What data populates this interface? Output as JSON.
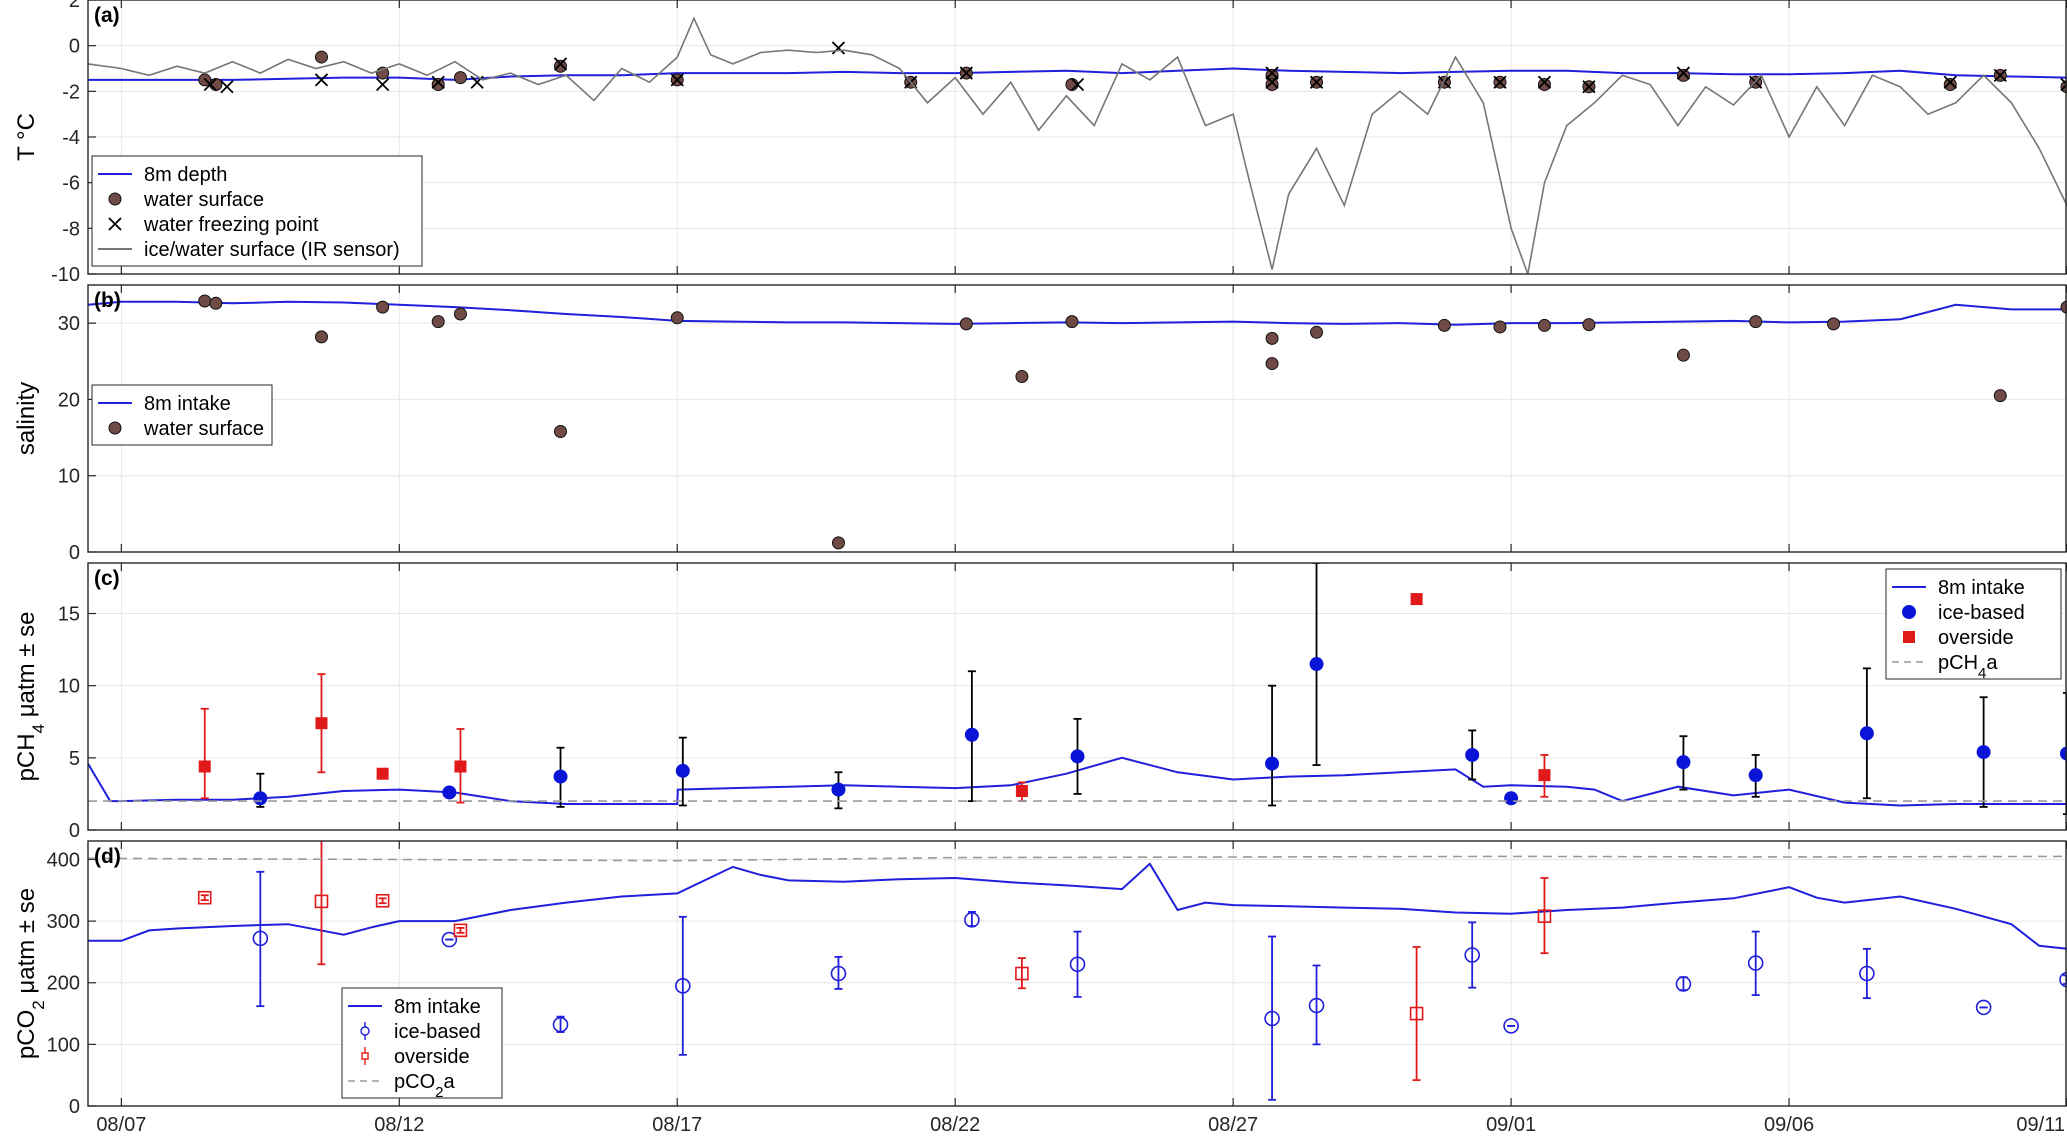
{
  "x_axis": {
    "tick_labels": [
      "08/07",
      "08/12",
      "08/17",
      "08/22",
      "08/27",
      "09/01",
      "09/06",
      "09/11"
    ],
    "tick_days": [
      0,
      5,
      10,
      15,
      20,
      25,
      30,
      35
    ],
    "xlim": [
      -0.6,
      35.0
    ]
  },
  "chart_data": [
    {
      "type": "line",
      "panel_label": "(a)",
      "ylabel": "T °C",
      "ylim": [
        -10,
        2
      ],
      "yticks": [
        2,
        0,
        -2,
        -4,
        -6,
        -8,
        -10
      ],
      "grid": true,
      "legend_position": "bottom-left",
      "series": [
        {
          "name": "8m depth",
          "kind": "line",
          "color": "#1f1fdc",
          "x": [
            -0.6,
            0,
            1,
            2,
            3,
            4,
            5,
            6,
            7,
            8,
            9,
            10,
            11,
            12,
            13,
            14,
            15,
            16,
            17,
            18,
            19,
            20,
            21,
            22,
            23,
            24,
            25,
            26,
            27,
            28,
            29,
            30,
            31,
            32,
            33,
            34,
            35
          ],
          "y": [
            -1.5,
            -1.5,
            -1.5,
            -1.5,
            -1.45,
            -1.4,
            -1.4,
            -1.5,
            -1.35,
            -1.3,
            -1.3,
            -1.2,
            -1.2,
            -1.2,
            -1.15,
            -1.2,
            -1.2,
            -1.15,
            -1.1,
            -1.2,
            -1.1,
            -1.0,
            -1.1,
            -1.15,
            -1.2,
            -1.15,
            -1.1,
            -1.1,
            -1.2,
            -1.2,
            -1.25,
            -1.25,
            -1.2,
            -1.1,
            -1.3,
            -1.35,
            -1.4
          ]
        },
        {
          "name": "water surface",
          "kind": "points",
          "color": "#704b46",
          "x": [
            1.5,
            1.7,
            3.6,
            4.7,
            5.7,
            6.1,
            7.9,
            10.0,
            14.2,
            15.2,
            17.1,
            20.7,
            20.7,
            21.5,
            23.8,
            24.8,
            25.6,
            26.4,
            28.1,
            29.4,
            32.9,
            33.8,
            35.0
          ],
          "y": [
            -1.5,
            -1.7,
            -0.5,
            -1.2,
            -1.7,
            -1.4,
            -0.9,
            -1.5,
            -1.6,
            -1.2,
            -1.7,
            -1.3,
            -1.7,
            -1.6,
            -1.6,
            -1.6,
            -1.7,
            -1.8,
            -1.3,
            -1.6,
            -1.7,
            -1.3,
            -1.8
          ]
        },
        {
          "name": "water freezing point",
          "kind": "crosses",
          "color": "#000000",
          "x": [
            1.6,
            1.9,
            3.6,
            4.7,
            5.7,
            6.4,
            7.9,
            10.0,
            12.9,
            14.2,
            15.2,
            17.2,
            20.7,
            20.7,
            21.5,
            23.8,
            24.8,
            25.6,
            26.4,
            28.1,
            29.4,
            32.9,
            33.8,
            35.0
          ],
          "y": [
            -1.7,
            -1.8,
            -1.5,
            -1.7,
            -1.6,
            -1.6,
            -0.8,
            -1.5,
            -0.1,
            -1.6,
            -1.2,
            -1.7,
            -1.2,
            -1.6,
            -1.6,
            -1.6,
            -1.6,
            -1.6,
            -1.8,
            -1.2,
            -1.6,
            -1.6,
            -1.3,
            -1.7
          ]
        },
        {
          "name": "ice/water surface (IR sensor)",
          "kind": "line",
          "color": "#767676",
          "x": [
            -0.6,
            0,
            0.5,
            1,
            1.5,
            2,
            2.5,
            3,
            3.5,
            4,
            4.5,
            5,
            5.5,
            6,
            6.5,
            7,
            7.5,
            8,
            8.5,
            9,
            9.5,
            10,
            10.3,
            10.6,
            11,
            11.5,
            12,
            12.5,
            13,
            13.5,
            14,
            14.5,
            15,
            15.5,
            16,
            16.5,
            17,
            17.5,
            18,
            18.5,
            19,
            19.5,
            20,
            20.3,
            20.7,
            21,
            21.5,
            22,
            22.5,
            23,
            23.5,
            24,
            24.5,
            25,
            25.3,
            25.6,
            26,
            26.5,
            27,
            27.5,
            28,
            28.5,
            29,
            29.5,
            30,
            30.5,
            31,
            31.5,
            32,
            32.5,
            33,
            33.5,
            34,
            34.5,
            35
          ],
          "y": [
            -0.8,
            -1.0,
            -1.3,
            -0.9,
            -1.2,
            -0.7,
            -1.2,
            -0.6,
            -1.0,
            -0.7,
            -1.2,
            -0.8,
            -1.3,
            -0.7,
            -1.5,
            -1.2,
            -1.7,
            -1.3,
            -2.4,
            -1.0,
            -1.6,
            -0.5,
            1.2,
            -0.4,
            -0.8,
            -0.3,
            -0.2,
            -0.3,
            -0.2,
            -0.4,
            -1.0,
            -2.5,
            -1.4,
            -3.0,
            -1.6,
            -3.7,
            -2.2,
            -3.5,
            -0.8,
            -1.5,
            -0.5,
            -3.5,
            -3.0,
            -6.0,
            -9.8,
            -6.5,
            -4.5,
            -7.0,
            -3.0,
            -2.0,
            -3.0,
            -0.5,
            -2.5,
            -8.0,
            -10.0,
            -6.0,
            -3.5,
            -2.5,
            -1.3,
            -1.7,
            -3.5,
            -1.8,
            -2.6,
            -1.3,
            -4.0,
            -1.8,
            -3.5,
            -1.3,
            -1.8,
            -3.0,
            -2.5,
            -1.3,
            -2.5,
            -4.5,
            -7.0
          ]
        }
      ]
    },
    {
      "type": "line",
      "panel_label": "(b)",
      "ylabel": "salinity",
      "ylim": [
        0,
        35
      ],
      "yticks": [
        30,
        20,
        10,
        0
      ],
      "grid": true,
      "legend_position": "middle-left",
      "series": [
        {
          "name": "8m intake",
          "kind": "line",
          "color": "#1f1fdc",
          "x": [
            -0.6,
            0,
            1,
            2,
            3,
            4,
            5,
            6,
            7,
            8,
            9,
            10,
            11,
            12,
            13,
            14,
            15,
            16,
            17,
            18,
            19,
            20,
            21,
            22,
            23,
            24,
            25,
            26,
            27,
            28,
            29,
            30,
            31,
            32,
            33,
            34,
            35
          ],
          "y": [
            32.4,
            32.8,
            32.8,
            32.6,
            32.8,
            32.7,
            32.4,
            32.1,
            31.7,
            31.2,
            30.8,
            30.3,
            30.2,
            30.1,
            30.1,
            30.0,
            29.9,
            30.0,
            30.1,
            30.0,
            30.1,
            30.2,
            30.0,
            29.9,
            30.0,
            29.8,
            30.0,
            30.0,
            30.1,
            30.2,
            30.3,
            30.1,
            30.2,
            30.5,
            32.4,
            31.8,
            31.8
          ]
        },
        {
          "name": "water surface",
          "kind": "points",
          "color": "#704b46",
          "x": [
            1.5,
            1.7,
            3.6,
            4.7,
            5.7,
            6.1,
            7.9,
            10.0,
            12.9,
            15.2,
            16.2,
            17.1,
            20.7,
            20.7,
            21.5,
            23.8,
            24.8,
            25.6,
            26.4,
            28.1,
            29.4,
            30.8,
            33.8,
            35.0
          ],
          "y": [
            32.9,
            32.6,
            28.2,
            32.1,
            30.2,
            31.2,
            15.8,
            30.7,
            1.2,
            29.9,
            23.0,
            30.2,
            28.0,
            24.7,
            28.8,
            29.7,
            29.5,
            29.7,
            29.8,
            25.8,
            30.2,
            29.9,
            20.5,
            32.1
          ]
        }
      ]
    },
    {
      "type": "scatter",
      "panel_label": "(c)",
      "ylabel": "pCH4 μatm ± se",
      "ylim": [
        0,
        18.5
      ],
      "yticks": [
        15,
        10,
        5,
        0
      ],
      "grid": true,
      "legend_position": "top-right",
      "series": [
        {
          "name": "8m intake",
          "kind": "line",
          "color": "#1f1fdc",
          "x": [
            -0.6,
            -0.2,
            0,
            1,
            2,
            3,
            4,
            5,
            6,
            7,
            8,
            9,
            10,
            10.01,
            11,
            12,
            13,
            14,
            15,
            16,
            17,
            18,
            19,
            20,
            21,
            22,
            23,
            24,
            24.5,
            25,
            26,
            26.5,
            27,
            28,
            29,
            30,
            31,
            32,
            33,
            34,
            35
          ],
          "y": [
            4.6,
            2.0,
            2.0,
            2.1,
            2.1,
            2.3,
            2.7,
            2.8,
            2.6,
            2.0,
            1.8,
            1.8,
            1.8,
            2.8,
            2.9,
            3.0,
            3.1,
            3.0,
            2.9,
            3.1,
            3.9,
            5.0,
            4.0,
            3.5,
            3.7,
            3.8,
            4.0,
            4.2,
            3.0,
            3.1,
            3.0,
            2.8,
            2.0,
            3.0,
            2.4,
            2.8,
            1.9,
            1.7,
            1.8,
            1.8,
            1.8
          ]
        },
        {
          "name": "ice-based",
          "kind": "points_err",
          "color": "#0a14d6",
          "x": [
            2.5,
            5.9,
            7.9,
            10.1,
            12.9,
            15.3,
            17.2,
            20.7,
            21.5,
            24.3,
            25.0,
            28.1,
            29.4,
            31.4,
            33.5,
            35.0
          ],
          "y": [
            2.2,
            2.6,
            3.7,
            4.1,
            2.8,
            6.6,
            5.1,
            4.6,
            11.5,
            5.2,
            2.2,
            4.7,
            3.8,
            6.7,
            5.4,
            5.3
          ],
          "err_low": [
            1.6,
            2.6,
            1.6,
            1.7,
            1.5,
            2.0,
            2.5,
            1.7,
            4.5,
            3.5,
            2.2,
            2.8,
            2.3,
            2.2,
            1.6,
            1.1
          ],
          "err_high": [
            3.9,
            2.6,
            5.7,
            6.4,
            4.0,
            11.0,
            7.7,
            10.0,
            18.5,
            6.9,
            2.2,
            6.5,
            5.2,
            11.2,
            9.2,
            9.5
          ]
        },
        {
          "name": "overside",
          "kind": "squares_err",
          "color": "#e01a1a",
          "x": [
            1.5,
            3.6,
            4.7,
            6.1,
            16.2,
            23.3,
            25.6
          ],
          "y": [
            4.4,
            7.4,
            3.9,
            4.4,
            2.7,
            16.0,
            3.8
          ],
          "err_low": [
            2.2,
            4.0,
            3.7,
            1.9,
            2.0,
            16.0,
            2.3
          ],
          "err_high": [
            8.4,
            10.8,
            4.1,
            7.0,
            3.3,
            16.0,
            5.2
          ]
        },
        {
          "name": "pCH4a",
          "kind": "dashed",
          "color": "#9a9a9a",
          "x": [
            -0.6,
            35.0
          ],
          "y": [
            2.0,
            2.0
          ]
        }
      ]
    },
    {
      "type": "scatter",
      "panel_label": "(d)",
      "ylabel": "pCO2 μatm ± se",
      "ylim": [
        0,
        430
      ],
      "yticks": [
        400,
        300,
        200,
        100,
        0
      ],
      "grid": true,
      "legend_position": "bottom-left",
      "series": [
        {
          "name": "8m intake",
          "kind": "line",
          "color": "#1f1fdc",
          "x": [
            -0.6,
            0,
            0.5,
            1,
            2,
            3,
            4,
            4.5,
            5,
            6,
            7,
            8,
            9,
            10,
            11,
            11.5,
            12,
            13,
            14,
            15,
            16,
            17,
            18,
            18.5,
            19,
            19.5,
            20,
            21,
            22,
            23,
            24,
            25,
            26,
            27,
            28,
            29,
            30,
            30.5,
            31,
            32,
            33,
            34,
            34.5,
            35
          ],
          "y": [
            268,
            268,
            285,
            288,
            292,
            295,
            278,
            290,
            300,
            300,
            318,
            330,
            340,
            345,
            388,
            375,
            366,
            364,
            368,
            370,
            363,
            358,
            352,
            393,
            318,
            330,
            326,
            324,
            322,
            320,
            314,
            312,
            318,
            322,
            330,
            337,
            355,
            338,
            330,
            340,
            320,
            295,
            260,
            255
          ]
        },
        {
          "name": "ice-based",
          "kind": "circles_err",
          "color": "#1f1fdc",
          "x": [
            2.5,
            5.9,
            7.9,
            10.1,
            12.9,
            15.3,
            17.2,
            20.7,
            21.5,
            24.3,
            25.0,
            28.1,
            29.4,
            31.4,
            33.5,
            35.0
          ],
          "y": [
            272,
            270,
            132,
            195,
            215,
            302,
            230,
            142,
            163,
            245,
            130,
            198,
            232,
            215,
            160,
            205
          ],
          "err_low": [
            162,
            270,
            120,
            83,
            190,
            292,
            177,
            10,
            100,
            192,
            130,
            188,
            180,
            175,
            160,
            198
          ],
          "err_high": [
            380,
            270,
            145,
            307,
            242,
            315,
            283,
            275,
            228,
            298,
            130,
            209,
            283,
            255,
            160,
            212
          ]
        },
        {
          "name": "overside",
          "kind": "open_squares_err",
          "color": "#e01a1a",
          "x": [
            1.5,
            3.6,
            4.7,
            6.1,
            16.2,
            23.3,
            25.6
          ],
          "y": [
            338,
            332,
            333,
            285,
            215,
            150,
            308
          ],
          "err_low": [
            334,
            230,
            329,
            281,
            191,
            42,
            248
          ],
          "err_high": [
            342,
            433,
            337,
            289,
            240,
            258,
            370
          ]
        },
        {
          "name": "pCO2a",
          "kind": "dashed",
          "color": "#9a9a9a",
          "x": [
            -0.6,
            5,
            10,
            15,
            20,
            25,
            30,
            35.0
          ],
          "y": [
            402,
            400,
            398,
            403,
            404,
            405,
            404,
            405
          ]
        }
      ]
    }
  ]
}
